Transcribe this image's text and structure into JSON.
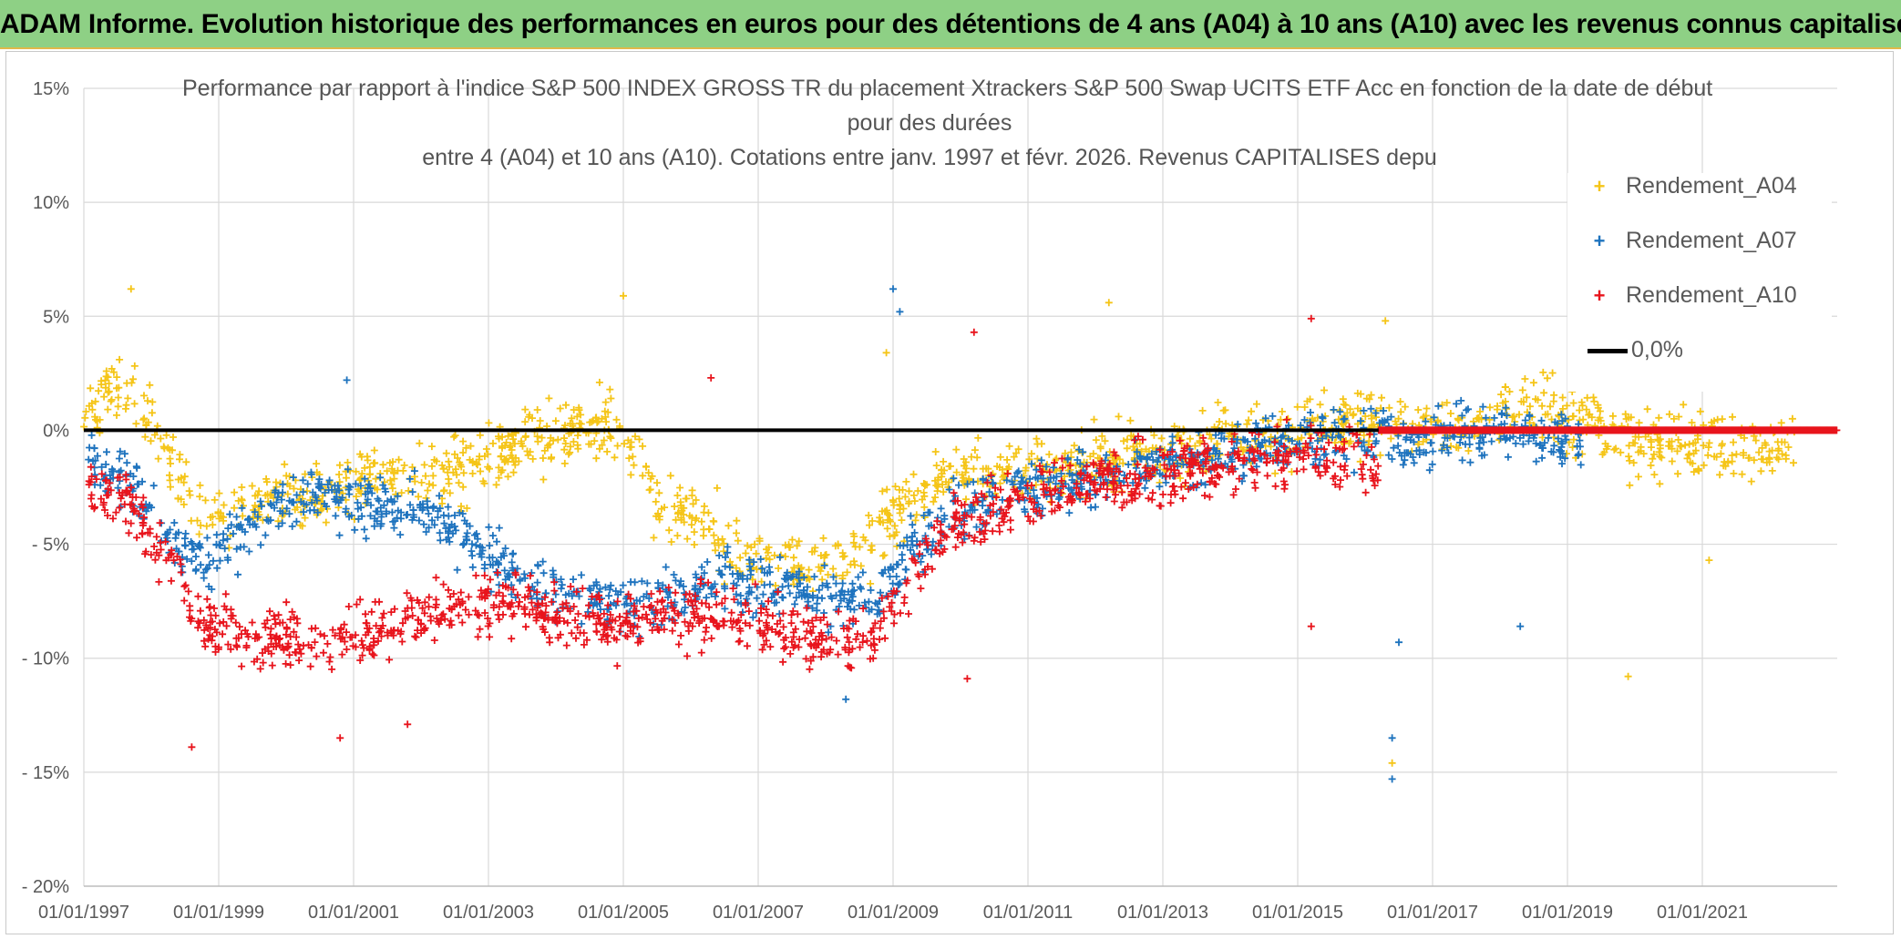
{
  "banner": {
    "title": "ADAM Informe. Evolution historique des performances en euros pour des détentions de 4 ans (A04) à 10 ans (A10) avec les revenus connus capitalisés"
  },
  "chart_data": {
    "type": "scatter",
    "title": "Performance par rapport à l'indice S&P 500 INDEX GROSS TR  du placement Xtrackers S&P 500 Swap UCITS ETF Acc en fonction de la date de début",
    "title_lines": [
      "Performance par rapport à l'indice S&P 500 INDEX GROSS TR  du placement Xtrackers S&P 500 Swap UCITS ETF Acc en fonction de la date de début",
      "pour des durées",
      "entre 4 (A04) et 10 ans (A10). Cotations entre janv. 1997 et févr. 2026. Revenus CAPITALISES depu"
    ],
    "xlabel": "",
    "ylabel": "",
    "xlim": [
      1997.0,
      2023.0
    ],
    "ylim": [
      -20,
      15
    ],
    "x_tick_labels": [
      "01/01/1997",
      "01/01/1999",
      "01/01/2001",
      "01/01/2003",
      "01/01/2005",
      "01/01/2007",
      "01/01/2009",
      "01/01/2011",
      "01/01/2013",
      "01/01/2015",
      "01/01/2017",
      "01/01/2019",
      "01/01/2021"
    ],
    "x_tick_values": [
      1997,
      1999,
      2001,
      2003,
      2005,
      2007,
      2009,
      2011,
      2013,
      2015,
      2017,
      2019,
      2021
    ],
    "y_tick_labels": [
      "15%",
      "10%",
      "5%",
      "0%",
      "- 5%",
      "- 10%",
      "- 15%",
      "- 20%"
    ],
    "y_tick_values": [
      15,
      10,
      5,
      0,
      -5,
      -10,
      -15,
      -20
    ],
    "grid": true,
    "legend_position": "top-right",
    "reference_line": {
      "name": "0,0%",
      "value": 0,
      "color": "#000000"
    },
    "series": [
      {
        "name": "Rendement_A04",
        "color": "#f5c518",
        "range": [
          1997.0,
          2022.4
        ],
        "trend_x": [
          1997.0,
          1997.7,
          1998.3,
          1998.8,
          1999.5,
          2000.3,
          2001.2,
          2002.0,
          2002.8,
          2003.5,
          2004.3,
          2004.9,
          2005.5,
          2006.2,
          2006.8,
          2007.5,
          2008.3,
          2008.9,
          2009.3,
          2010.0,
          2011.0,
          2012.0,
          2013.0,
          2014.0,
          2015.0,
          2016.0,
          2017.0,
          2018.0,
          2018.5,
          2019.0,
          2020.0,
          2021.0,
          2022.4
        ],
        "trend_y": [
          1.0,
          2.0,
          -1.5,
          -4.0,
          -3.0,
          -3.0,
          -2.0,
          -2.2,
          -1.5,
          -0.5,
          0.0,
          0.2,
          -3.0,
          -4.0,
          -5.5,
          -6.0,
          -5.5,
          -4.5,
          -2.5,
          -2.0,
          -2.0,
          -1.5,
          -1.0,
          -0.3,
          0.0,
          0.5,
          0.0,
          0.5,
          1.5,
          0.5,
          -0.5,
          -0.5,
          -1.0
        ],
        "spread": 1.3,
        "outliers": [
          [
            1997.7,
            6.2
          ],
          [
            2005.0,
            5.9
          ],
          [
            2012.2,
            5.6
          ],
          [
            2008.9,
            3.4
          ],
          [
            2016.3,
            4.8
          ],
          [
            2016.4,
            -14.6
          ],
          [
            2019.9,
            -10.8
          ],
          [
            2021.1,
            -5.7
          ]
        ]
      },
      {
        "name": "Rendement_A07",
        "color": "#1e73be",
        "range": [
          1997.0,
          2019.2
        ],
        "trend_x": [
          1997.0,
          1997.6,
          1998.3,
          1998.8,
          1999.5,
          2000.3,
          2001.2,
          2002.0,
          2002.6,
          2003.5,
          2004.5,
          2005.5,
          2006.5,
          2007.5,
          2008.3,
          2008.8,
          2009.3,
          2010.0,
          2011.0,
          2012.0,
          2013.0,
          2014.0,
          2015.0,
          2016.0,
          2017.0,
          2018.0,
          2019.2
        ],
        "trend_y": [
          -1.5,
          -2.0,
          -5.0,
          -6.0,
          -4.0,
          -3.0,
          -3.0,
          -3.5,
          -4.5,
          -6.5,
          -7.5,
          -7.5,
          -6.5,
          -7.0,
          -7.5,
          -7.5,
          -5.0,
          -3.5,
          -2.5,
          -2.0,
          -1.5,
          -1.0,
          -0.5,
          -0.3,
          -0.5,
          0.0,
          -0.5
        ],
        "spread": 1.1,
        "outliers": [
          [
            2009.0,
            6.2
          ],
          [
            2009.1,
            5.2
          ],
          [
            2000.9,
            2.2
          ],
          [
            2016.4,
            -13.5
          ],
          [
            2016.4,
            -15.3
          ],
          [
            2016.5,
            -9.3
          ],
          [
            2018.3,
            -8.6
          ],
          [
            2008.3,
            -11.8
          ]
        ]
      },
      {
        "name": "Rendement_A10",
        "color": "#e8141c",
        "range": [
          1997.0,
          2016.2
        ],
        "trend_x": [
          1997.0,
          1997.6,
          1998.3,
          1998.8,
          1999.5,
          2000.3,
          2001.2,
          2002.0,
          2003.0,
          2004.0,
          2005.0,
          2006.0,
          2007.0,
          2007.7,
          2008.3,
          2008.8,
          2009.3,
          2010.0,
          2011.0,
          2012.0,
          2013.0,
          2014.0,
          2015.0,
          2016.2
        ],
        "trend_y": [
          -2.5,
          -3.0,
          -6.0,
          -8.5,
          -9.0,
          -9.5,
          -9.0,
          -8.0,
          -7.5,
          -8.0,
          -8.5,
          -8.0,
          -8.5,
          -9.0,
          -9.5,
          -8.5,
          -6.0,
          -4.0,
          -3.0,
          -2.0,
          -2.0,
          -1.5,
          -1.0,
          -1.5
        ],
        "spread": 1.2,
        "outliers": [
          [
            1998.6,
            -13.9
          ],
          [
            2000.8,
            -13.5
          ],
          [
            2001.8,
            -12.9
          ],
          [
            2006.3,
            2.3
          ],
          [
            2010.2,
            4.3
          ],
          [
            2015.2,
            4.9
          ],
          [
            2010.1,
            -10.9
          ],
          [
            2015.2,
            -8.6
          ]
        ]
      }
    ]
  }
}
